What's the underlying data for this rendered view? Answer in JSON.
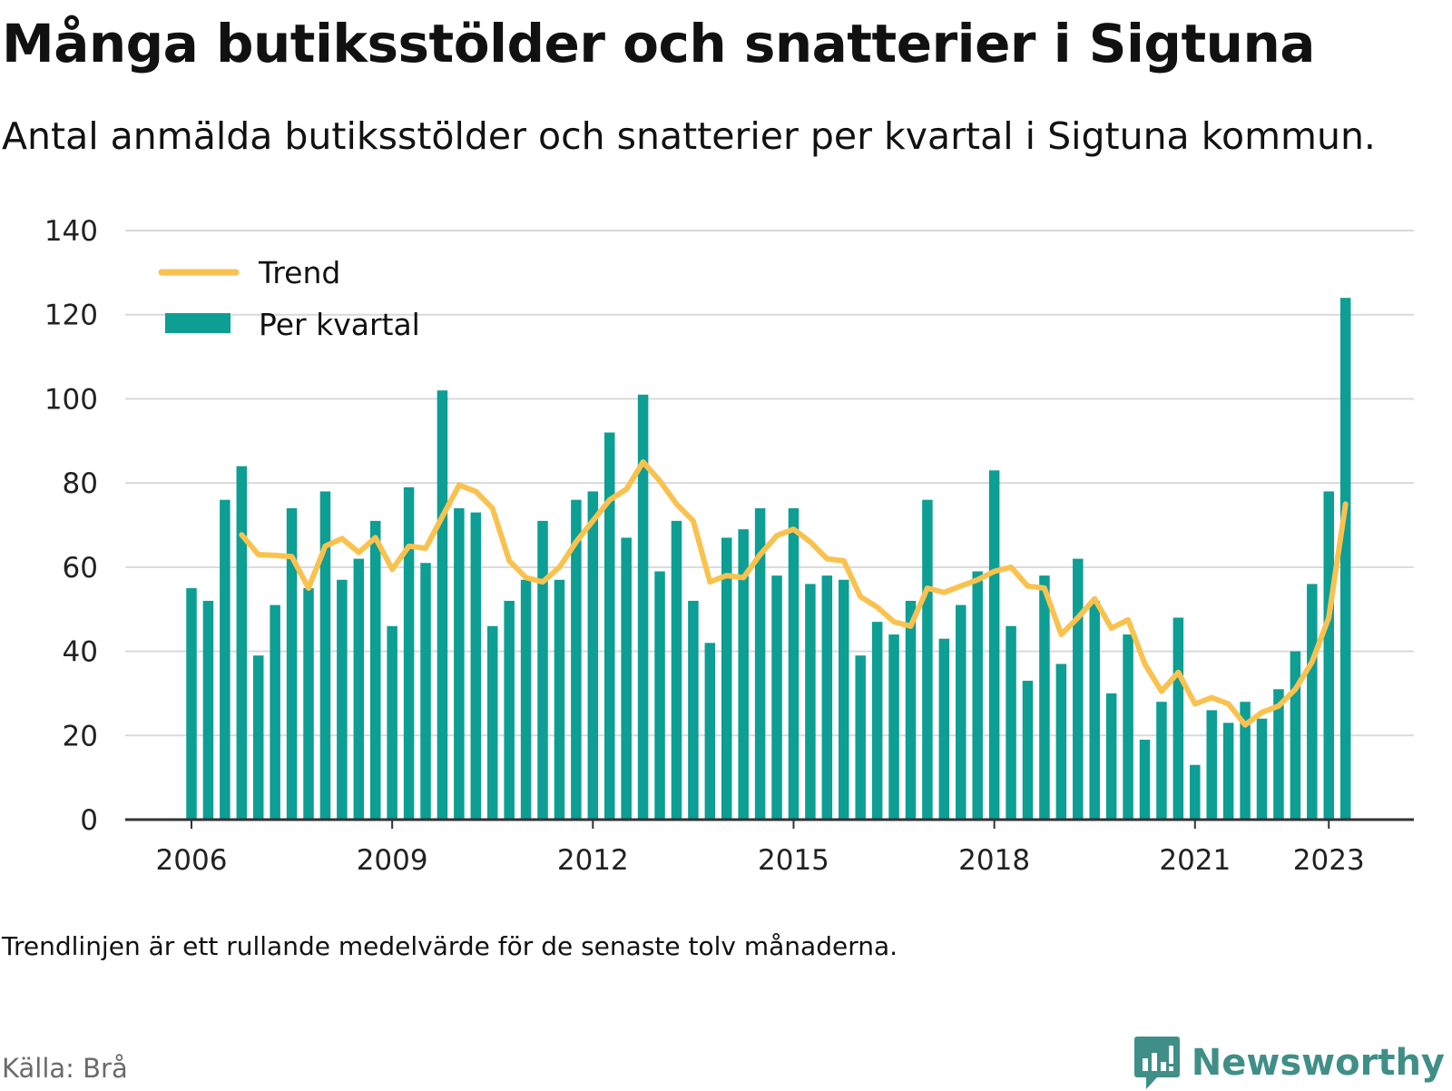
{
  "header": {
    "title": "Många butiksstölder och snatterier i Sigtuna",
    "subtitle": "Antal anmälda butiksstölder och snatterier per kvartal i Sigtuna kommun."
  },
  "footer": {
    "note": "Trendlinjen är ett rullande medelvärde för de senaste tolv månaderna.",
    "source": "Källa: Brå",
    "brand": "Newsworthy"
  },
  "colors": {
    "bars": "#0d9e94",
    "trend": "#f9c24f",
    "grid": "#d9d9d9",
    "axis": "#333333",
    "brand": "#3f8f88"
  },
  "icons": {
    "brand_logo": "newsworthy-logo-icon"
  },
  "chart_data": {
    "type": "bar",
    "x_start": "2006 Q1",
    "x_tick_labels": [
      "2006",
      "2009",
      "2012",
      "2015",
      "2018",
      "2021",
      "2023"
    ],
    "x_tick_values": [
      2006,
      2009,
      2012,
      2015,
      2018,
      2021,
      2023
    ],
    "y_ticks": [
      0,
      20,
      40,
      60,
      80,
      100,
      120,
      140
    ],
    "ylim": [
      0,
      140
    ],
    "grid": true,
    "legend_position": "top-left",
    "series": [
      {
        "name": "Per kvartal",
        "kind": "bar",
        "values": [
          55,
          52,
          76,
          84,
          39,
          51,
          74,
          55,
          78,
          57,
          62,
          71,
          46,
          79,
          61,
          102,
          74,
          73,
          46,
          52,
          57,
          71,
          57,
          76,
          78,
          92,
          67,
          101,
          59,
          71,
          52,
          42,
          67,
          69,
          74,
          58,
          74,
          56,
          58,
          57,
          39,
          47,
          44,
          52,
          76,
          43,
          51,
          59,
          83,
          46,
          33,
          58,
          37,
          62,
          52,
          30,
          44,
          19,
          28,
          48,
          13,
          26,
          23,
          28,
          24,
          31,
          40,
          56,
          78,
          124
        ]
      },
      {
        "name": "Trend",
        "kind": "line",
        "start_index": 3,
        "values": [
          67.7,
          63.0,
          62.8,
          62.5,
          55.0,
          65.0,
          66.8,
          63.5,
          67.0,
          59.5,
          65.0,
          64.5,
          72.0,
          79.5,
          78.0,
          74.0,
          61.5,
          57.5,
          56.5,
          60.0,
          66.0,
          71.0,
          76.0,
          78.5,
          85.0,
          80.5,
          75.0,
          71.0,
          56.5,
          58.0,
          57.5,
          63.0,
          67.5,
          69.0,
          66.0,
          62.0,
          61.5,
          53.0,
          50.5,
          47.0,
          46.0,
          55.0,
          54.0,
          55.5,
          57.0,
          59.0,
          60.0,
          55.5,
          55.0,
          44.0,
          48.0,
          52.5,
          45.5,
          47.5,
          37.0,
          30.5,
          35.0,
          27.5,
          29.0,
          27.5,
          22.5,
          25.5,
          27.0,
          31.0,
          37.5,
          48.0,
          75.0
        ]
      }
    ]
  }
}
